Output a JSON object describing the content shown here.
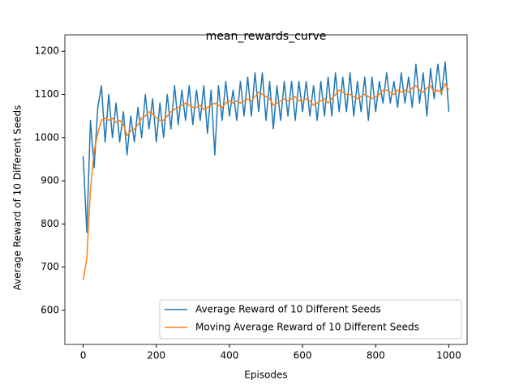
{
  "chart_data": {
    "type": "line",
    "title": "mean_rewards_curve",
    "xlabel": "Episodes",
    "ylabel": "Average Reward of 10 Different Seeds",
    "x": [
      0,
      10,
      20,
      30,
      40,
      50,
      60,
      70,
      80,
      90,
      100,
      110,
      120,
      130,
      140,
      150,
      160,
      170,
      180,
      190,
      200,
      210,
      220,
      230,
      240,
      250,
      260,
      270,
      280,
      290,
      300,
      310,
      320,
      330,
      340,
      350,
      360,
      370,
      380,
      390,
      400,
      410,
      420,
      430,
      440,
      450,
      460,
      470,
      480,
      490,
      500,
      510,
      520,
      530,
      540,
      550,
      560,
      570,
      580,
      590,
      600,
      610,
      620,
      630,
      640,
      650,
      660,
      670,
      680,
      690,
      700,
      710,
      720,
      730,
      740,
      750,
      760,
      770,
      780,
      790,
      800,
      810,
      820,
      830,
      840,
      850,
      860,
      870,
      880,
      890,
      900,
      910,
      920,
      930,
      940,
      950,
      960,
      970,
      980,
      990,
      1000
    ],
    "series": [
      {
        "name": "Average Reward of 10 Different Seeds",
        "color": "#1f77b4",
        "values": [
          957,
          780,
          1040,
          930,
          1070,
          1120,
          990,
          1100,
          1000,
          1080,
          990,
          1060,
          960,
          1050,
          990,
          1070,
          1000,
          1100,
          1020,
          1090,
          990,
          1080,
          1000,
          1100,
          1020,
          1120,
          1030,
          1110,
          1040,
          1120,
          1030,
          1110,
          1040,
          1120,
          1010,
          1110,
          960,
          1120,
          1040,
          1130,
          1050,
          1110,
          1040,
          1130,
          1050,
          1140,
          1050,
          1150,
          1060,
          1150,
          1040,
          1130,
          1020,
          1120,
          1040,
          1130,
          1050,
          1130,
          1040,
          1130,
          1060,
          1130,
          1050,
          1120,
          1040,
          1130,
          1050,
          1140,
          1050,
          1150,
          1060,
          1140,
          1060,
          1150,
          1050,
          1130,
          1060,
          1140,
          1040,
          1140,
          1060,
          1130,
          1080,
          1150,
          1080,
          1130,
          1070,
          1150,
          1080,
          1140,
          1070,
          1170,
          1080,
          1150,
          1050,
          1160,
          1090,
          1170,
          1100,
          1175,
          1060
        ]
      },
      {
        "name": "Moving Average Reward of 10 Different Seeds",
        "color": "#ff7f0e",
        "values": [
          670,
          720,
          880,
          970,
          1010,
          1040,
          1045,
          1040,
          1045,
          1035,
          1040,
          1030,
          1005,
          1015,
          1020,
          1030,
          1045,
          1050,
          1060,
          1055,
          1045,
          1040,
          1040,
          1050,
          1060,
          1065,
          1070,
          1075,
          1080,
          1075,
          1070,
          1070,
          1075,
          1065,
          1070,
          1075,
          1080,
          1075,
          1070,
          1080,
          1085,
          1080,
          1085,
          1080,
          1085,
          1090,
          1085,
          1095,
          1105,
          1100,
          1095,
          1090,
          1075,
          1080,
          1085,
          1090,
          1085,
          1090,
          1095,
          1085,
          1085,
          1090,
          1085,
          1075,
          1080,
          1085,
          1090,
          1080,
          1090,
          1100,
          1110,
          1105,
          1100,
          1100,
          1095,
          1090,
          1095,
          1100,
          1095,
          1090,
          1095,
          1100,
          1110,
          1110,
          1105,
          1100,
          1110,
          1105,
          1110,
          1105,
          1115,
          1120,
          1110,
          1105,
          1115,
          1120,
          1105,
          1110,
          1105,
          1125,
          1110
        ]
      }
    ],
    "xlim": [
      -50,
      1050
    ],
    "ylim": [
      521,
      1238
    ],
    "xticks": [
      0,
      200,
      400,
      600,
      800,
      1000
    ],
    "yticks": [
      600,
      700,
      800,
      900,
      1000,
      1100,
      1200
    ],
    "legend": "lower right"
  }
}
